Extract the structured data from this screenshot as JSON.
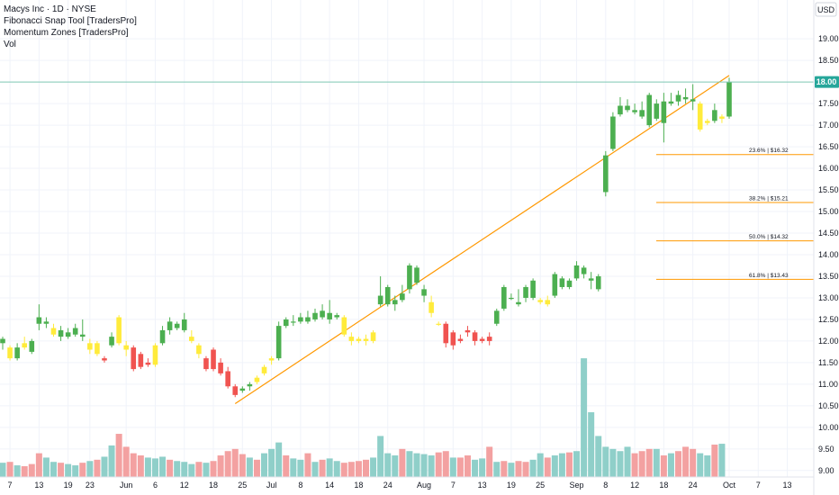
{
  "legend": {
    "symbol": "Macys Inc · 1D · NYSE",
    "indicator_1": "Fibonacci Snap Tool [TradersPro]",
    "indicator_2": "Momentum Zones [TradersPro]",
    "indicator_3": "Vol"
  },
  "price_axis": {
    "currency": "USD",
    "current_price_label": "18.00",
    "current_price": 18.0
  },
  "colors": {
    "up": "#4caf50",
    "down": "#f05350",
    "neutral": "#ffeb3b",
    "vol_up": "#8fcfc9",
    "vol_down": "#f3a1a1",
    "trendline": "#ff9800",
    "fib_line": "#ff9800",
    "price_line": "#7fc8b5",
    "price_tag": "#26a69a"
  },
  "chart_data": {
    "type": "candlestick",
    "y_axis": {
      "scale": "linear",
      "ylim": [
        8.85,
        19.9
      ],
      "ticks": [
        "9.00",
        "9.50",
        "10.00",
        "10.50",
        "11.00",
        "11.50",
        "12.00",
        "12.50",
        "13.00",
        "13.50",
        "14.00",
        "14.50",
        "15.00",
        "15.50",
        "16.00",
        "16.50",
        "17.00",
        "17.50",
        "18.00",
        "18.50",
        "19.00"
      ]
    },
    "x_axis": {
      "ticks": [
        {
          "label": "7",
          "i": 1
        },
        {
          "label": "13",
          "i": 5
        },
        {
          "label": "19",
          "i": 9
        },
        {
          "label": "23",
          "i": 12
        },
        {
          "label": "Jun",
          "i": 17
        },
        {
          "label": "6",
          "i": 21
        },
        {
          "label": "12",
          "i": 25
        },
        {
          "label": "18",
          "i": 29
        },
        {
          "label": "25",
          "i": 33
        },
        {
          "label": "Jul",
          "i": 37
        },
        {
          "label": "8",
          "i": 41
        },
        {
          "label": "14",
          "i": 45
        },
        {
          "label": "18",
          "i": 49
        },
        {
          "label": "24",
          "i": 53
        },
        {
          "label": "Aug",
          "i": 58
        },
        {
          "label": "7",
          "i": 62
        },
        {
          "label": "13",
          "i": 66
        },
        {
          "label": "19",
          "i": 70
        },
        {
          "label": "25",
          "i": 74
        },
        {
          "label": "Sep",
          "i": 79
        },
        {
          "label": "8",
          "i": 83
        },
        {
          "label": "12",
          "i": 87
        },
        {
          "label": "18",
          "i": 91
        },
        {
          "label": "24",
          "i": 95
        },
        {
          "label": "Oct",
          "i": 100
        },
        {
          "label": "7",
          "i": 104
        },
        {
          "label": "13",
          "i": 108
        }
      ]
    },
    "candles": [
      {
        "o": 11.95,
        "h": 12.1,
        "l": 11.8,
        "c": 12.05,
        "z": "up"
      },
      {
        "o": 11.85,
        "h": 11.9,
        "l": 11.55,
        "c": 11.6,
        "z": "neutral"
      },
      {
        "o": 11.6,
        "h": 11.95,
        "l": 11.55,
        "c": 11.85,
        "z": "up"
      },
      {
        "o": 11.85,
        "h": 12.1,
        "l": 11.8,
        "c": 11.95,
        "z": "neutral"
      },
      {
        "o": 11.75,
        "h": 12.05,
        "l": 11.7,
        "c": 12.0,
        "z": "up"
      },
      {
        "o": 12.4,
        "h": 12.85,
        "l": 12.25,
        "c": 12.55,
        "z": "up"
      },
      {
        "o": 12.4,
        "h": 12.55,
        "l": 12.3,
        "c": 12.45,
        "z": "up"
      },
      {
        "o": 12.3,
        "h": 12.4,
        "l": 12.1,
        "c": 12.15,
        "z": "neutral"
      },
      {
        "o": 12.1,
        "h": 12.35,
        "l": 12.0,
        "c": 12.25,
        "z": "up"
      },
      {
        "o": 12.1,
        "h": 12.3,
        "l": 12.05,
        "c": 12.2,
        "z": "up"
      },
      {
        "o": 12.15,
        "h": 12.4,
        "l": 12.1,
        "c": 12.3,
        "z": "up"
      },
      {
        "o": 12.15,
        "h": 12.5,
        "l": 12.0,
        "c": 12.1,
        "z": "up"
      },
      {
        "o": 11.95,
        "h": 12.05,
        "l": 11.7,
        "c": 11.8,
        "z": "neutral"
      },
      {
        "o": 11.95,
        "h": 12.0,
        "l": 11.65,
        "c": 11.7,
        "z": "neutral"
      },
      {
        "o": 11.6,
        "h": 11.65,
        "l": 11.5,
        "c": 11.55,
        "z": "down"
      },
      {
        "o": 11.9,
        "h": 12.2,
        "l": 11.85,
        "c": 12.1,
        "z": "up"
      },
      {
        "o": 12.55,
        "h": 12.6,
        "l": 11.9,
        "c": 11.95,
        "z": "neutral"
      },
      {
        "o": 11.9,
        "h": 12.0,
        "l": 11.65,
        "c": 11.8,
        "z": "neutral"
      },
      {
        "o": 11.85,
        "h": 11.9,
        "l": 11.3,
        "c": 11.35,
        "z": "down"
      },
      {
        "o": 11.7,
        "h": 11.75,
        "l": 11.35,
        "c": 11.4,
        "z": "down"
      },
      {
        "o": 11.5,
        "h": 11.6,
        "l": 11.4,
        "c": 11.45,
        "z": "down"
      },
      {
        "o": 11.45,
        "h": 11.95,
        "l": 11.4,
        "c": 11.9,
        "z": "neutral"
      },
      {
        "o": 11.95,
        "h": 12.35,
        "l": 11.9,
        "c": 12.25,
        "z": "up"
      },
      {
        "o": 12.25,
        "h": 12.55,
        "l": 12.15,
        "c": 12.45,
        "z": "up"
      },
      {
        "o": 12.3,
        "h": 12.45,
        "l": 12.25,
        "c": 12.4,
        "z": "up"
      },
      {
        "o": 12.5,
        "h": 12.65,
        "l": 12.2,
        "c": 12.25,
        "z": "up"
      },
      {
        "o": 12.1,
        "h": 12.25,
        "l": 11.95,
        "c": 12.0,
        "z": "neutral"
      },
      {
        "o": 11.9,
        "h": 11.95,
        "l": 11.6,
        "c": 11.7,
        "z": "neutral"
      },
      {
        "o": 11.6,
        "h": 11.65,
        "l": 11.3,
        "c": 11.35,
        "z": "down"
      },
      {
        "o": 11.8,
        "h": 11.85,
        "l": 11.3,
        "c": 11.35,
        "z": "down"
      },
      {
        "o": 11.5,
        "h": 11.6,
        "l": 11.2,
        "c": 11.25,
        "z": "down"
      },
      {
        "o": 11.3,
        "h": 11.4,
        "l": 10.9,
        "c": 10.95,
        "z": "down"
      },
      {
        "o": 10.95,
        "h": 11.0,
        "l": 10.7,
        "c": 10.75,
        "z": "down"
      },
      {
        "o": 10.85,
        "h": 10.95,
        "l": 10.8,
        "c": 10.9,
        "z": "up"
      },
      {
        "o": 10.95,
        "h": 11.05,
        "l": 10.85,
        "c": 11.0,
        "z": "up"
      },
      {
        "o": 11.05,
        "h": 11.2,
        "l": 11.0,
        "c": 11.15,
        "z": "neutral"
      },
      {
        "o": 11.25,
        "h": 11.45,
        "l": 11.2,
        "c": 11.4,
        "z": "neutral"
      },
      {
        "o": 11.55,
        "h": 11.65,
        "l": 11.45,
        "c": 11.6,
        "z": "neutral"
      },
      {
        "o": 11.6,
        "h": 12.45,
        "l": 11.55,
        "c": 12.35,
        "z": "up"
      },
      {
        "o": 12.35,
        "h": 12.55,
        "l": 12.3,
        "c": 12.5,
        "z": "up"
      },
      {
        "o": 12.45,
        "h": 12.6,
        "l": 12.35,
        "c": 12.45,
        "z": "up"
      },
      {
        "o": 12.45,
        "h": 12.65,
        "l": 12.4,
        "c": 12.55,
        "z": "up"
      },
      {
        "o": 12.45,
        "h": 12.7,
        "l": 12.4,
        "c": 12.55,
        "z": "up"
      },
      {
        "o": 12.5,
        "h": 12.75,
        "l": 12.45,
        "c": 12.65,
        "z": "up"
      },
      {
        "o": 12.55,
        "h": 12.85,
        "l": 12.5,
        "c": 12.7,
        "z": "up"
      },
      {
        "o": 12.65,
        "h": 12.95,
        "l": 12.4,
        "c": 12.5,
        "z": "up"
      },
      {
        "o": 12.55,
        "h": 12.65,
        "l": 12.5,
        "c": 12.6,
        "z": "up"
      },
      {
        "o": 12.55,
        "h": 12.6,
        "l": 12.1,
        "c": 12.15,
        "z": "neutral"
      },
      {
        "o": 12.1,
        "h": 12.2,
        "l": 11.9,
        "c": 12.0,
        "z": "neutral"
      },
      {
        "o": 12.05,
        "h": 12.1,
        "l": 11.95,
        "c": 12.0,
        "z": "neutral"
      },
      {
        "o": 12.0,
        "h": 12.15,
        "l": 11.9,
        "c": 12.05,
        "z": "neutral"
      },
      {
        "o": 12.0,
        "h": 12.25,
        "l": 11.95,
        "c": 12.2,
        "z": "neutral"
      },
      {
        "o": 12.85,
        "h": 13.5,
        "l": 12.8,
        "c": 13.05,
        "z": "up"
      },
      {
        "o": 12.85,
        "h": 13.3,
        "l": 12.8,
        "c": 13.25,
        "z": "up"
      },
      {
        "o": 12.95,
        "h": 13.05,
        "l": 12.7,
        "c": 12.85,
        "z": "up"
      },
      {
        "o": 13.1,
        "h": 13.3,
        "l": 12.9,
        "c": 12.95,
        "z": "up"
      },
      {
        "o": 13.2,
        "h": 13.8,
        "l": 13.1,
        "c": 13.75,
        "z": "up"
      },
      {
        "o": 13.35,
        "h": 13.75,
        "l": 13.3,
        "c": 13.7,
        "z": "up"
      },
      {
        "o": 13.05,
        "h": 13.3,
        "l": 12.9,
        "c": 13.2,
        "z": "up"
      },
      {
        "o": 12.9,
        "h": 13.05,
        "l": 12.55,
        "c": 12.65,
        "z": "neutral"
      },
      {
        "o": 12.4,
        "h": 12.45,
        "l": 12.35,
        "c": 12.4,
        "z": "neutral"
      },
      {
        "o": 12.4,
        "h": 12.45,
        "l": 11.85,
        "c": 11.95,
        "z": "down"
      },
      {
        "o": 12.2,
        "h": 12.25,
        "l": 11.8,
        "c": 11.9,
        "z": "down"
      },
      {
        "o": 12.05,
        "h": 12.15,
        "l": 11.95,
        "c": 12.0,
        "z": "down"
      },
      {
        "o": 12.25,
        "h": 12.35,
        "l": 12.1,
        "c": 12.2,
        "z": "down"
      },
      {
        "o": 12.2,
        "h": 12.25,
        "l": 11.9,
        "c": 12.0,
        "z": "down"
      },
      {
        "o": 12.05,
        "h": 12.1,
        "l": 11.95,
        "c": 12.0,
        "z": "down"
      },
      {
        "o": 12.1,
        "h": 12.2,
        "l": 11.9,
        "c": 12.0,
        "z": "down"
      },
      {
        "o": 12.4,
        "h": 12.75,
        "l": 12.35,
        "c": 12.7,
        "z": "up"
      },
      {
        "o": 12.75,
        "h": 13.3,
        "l": 12.7,
        "c": 13.25,
        "z": "up"
      },
      {
        "o": 13.0,
        "h": 13.1,
        "l": 12.95,
        "c": 13.0,
        "z": "up"
      },
      {
        "o": 12.85,
        "h": 13.2,
        "l": 12.8,
        "c": 12.9,
        "z": "up"
      },
      {
        "o": 13.0,
        "h": 13.3,
        "l": 12.9,
        "c": 13.25,
        "z": "up"
      },
      {
        "o": 13.0,
        "h": 13.45,
        "l": 12.95,
        "c": 13.4,
        "z": "up"
      },
      {
        "o": 12.95,
        "h": 13.0,
        "l": 12.85,
        "c": 12.9,
        "z": "neutral"
      },
      {
        "o": 12.95,
        "h": 13.05,
        "l": 12.8,
        "c": 12.85,
        "z": "neutral"
      },
      {
        "o": 13.05,
        "h": 13.6,
        "l": 13.0,
        "c": 13.55,
        "z": "up"
      },
      {
        "o": 13.25,
        "h": 13.5,
        "l": 13.2,
        "c": 13.45,
        "z": "up"
      },
      {
        "o": 13.25,
        "h": 13.45,
        "l": 13.2,
        "c": 13.4,
        "z": "up"
      },
      {
        "o": 13.45,
        "h": 13.85,
        "l": 13.4,
        "c": 13.75,
        "z": "up"
      },
      {
        "o": 13.7,
        "h": 13.75,
        "l": 13.45,
        "c": 13.55,
        "z": "up"
      },
      {
        "o": 13.45,
        "h": 13.6,
        "l": 13.2,
        "c": 13.4,
        "z": "up"
      },
      {
        "o": 13.2,
        "h": 13.55,
        "l": 13.15,
        "c": 13.5,
        "z": "up"
      },
      {
        "o": 15.45,
        "h": 16.4,
        "l": 15.35,
        "c": 16.3,
        "z": "up"
      },
      {
        "o": 16.45,
        "h": 17.3,
        "l": 16.4,
        "c": 17.2,
        "z": "up"
      },
      {
        "o": 17.25,
        "h": 17.65,
        "l": 17.2,
        "c": 17.45,
        "z": "up"
      },
      {
        "o": 17.35,
        "h": 17.6,
        "l": 17.3,
        "c": 17.45,
        "z": "up"
      },
      {
        "o": 17.35,
        "h": 17.5,
        "l": 17.25,
        "c": 17.3,
        "z": "up"
      },
      {
        "o": 17.2,
        "h": 17.55,
        "l": 17.15,
        "c": 17.35,
        "z": "up"
      },
      {
        "o": 17.0,
        "h": 17.75,
        "l": 16.95,
        "c": 17.7,
        "z": "up"
      },
      {
        "o": 17.15,
        "h": 17.6,
        "l": 17.1,
        "c": 17.5,
        "z": "up"
      },
      {
        "o": 17.05,
        "h": 17.75,
        "l": 16.6,
        "c": 17.55,
        "z": "up"
      },
      {
        "o": 17.5,
        "h": 17.75,
        "l": 17.45,
        "c": 17.55,
        "z": "up"
      },
      {
        "o": 17.55,
        "h": 17.8,
        "l": 17.45,
        "c": 17.7,
        "z": "up"
      },
      {
        "o": 17.6,
        "h": 17.85,
        "l": 17.5,
        "c": 17.65,
        "z": "up"
      },
      {
        "o": 17.6,
        "h": 17.95,
        "l": 17.35,
        "c": 17.55,
        "z": "up"
      },
      {
        "o": 17.5,
        "h": 17.55,
        "l": 16.85,
        "c": 16.9,
        "z": "neutral"
      },
      {
        "o": 17.1,
        "h": 17.15,
        "l": 17.0,
        "c": 17.05,
        "z": "neutral"
      },
      {
        "o": 17.1,
        "h": 17.5,
        "l": 17.05,
        "c": 17.35,
        "z": "up"
      },
      {
        "o": 17.2,
        "h": 17.25,
        "l": 17.05,
        "c": 17.15,
        "z": "neutral"
      },
      {
        "o": 17.2,
        "h": 18.1,
        "l": 17.15,
        "c": 18.0,
        "z": "up"
      }
    ],
    "volume": [
      9.18,
      9.2,
      9.12,
      9.1,
      9.15,
      9.4,
      9.3,
      9.2,
      9.18,
      9.15,
      9.12,
      9.18,
      9.22,
      9.25,
      9.32,
      9.58,
      9.85,
      9.55,
      9.4,
      9.35,
      9.3,
      9.28,
      9.32,
      9.25,
      9.22,
      9.2,
      9.15,
      9.2,
      9.18,
      9.22,
      9.35,
      9.45,
      9.5,
      9.38,
      9.3,
      9.25,
      9.4,
      9.5,
      9.65,
      9.35,
      9.28,
      9.25,
      9.4,
      9.2,
      9.25,
      9.28,
      9.22,
      9.18,
      9.2,
      9.22,
      9.25,
      9.3,
      9.8,
      9.4,
      9.35,
      9.5,
      9.45,
      9.4,
      9.38,
      9.35,
      9.42,
      9.45,
      9.3,
      9.3,
      9.35,
      9.25,
      9.28,
      9.55,
      9.2,
      9.22,
      9.18,
      9.22,
      9.2,
      9.25,
      9.4,
      9.3,
      9.35,
      9.4,
      9.42,
      9.45,
      11.6,
      10.35,
      9.8,
      9.55,
      9.5,
      9.45,
      9.55,
      9.4,
      9.45,
      9.5,
      9.5,
      9.35,
      9.4,
      9.45,
      9.55,
      9.5,
      9.4,
      9.35,
      9.6,
      9.62
    ],
    "volume_color": [
      "up",
      "down",
      "up",
      "down",
      "down",
      "down",
      "up",
      "up",
      "down",
      "up",
      "up",
      "down",
      "up",
      "down",
      "up",
      "up",
      "down",
      "down",
      "down",
      "down",
      "up",
      "up",
      "up",
      "down",
      "up",
      "up",
      "up",
      "down",
      "up",
      "down",
      "down",
      "down",
      "down",
      "down",
      "up",
      "down",
      "up",
      "up",
      "up",
      "down",
      "up",
      "up",
      "down",
      "up",
      "down",
      "up",
      "up",
      "down",
      "down",
      "down",
      "down",
      "up",
      "up",
      "up",
      "up",
      "down",
      "up",
      "up",
      "up",
      "up",
      "down",
      "down",
      "up",
      "down",
      "down",
      "up",
      "up",
      "down",
      "up",
      "down",
      "up",
      "down",
      "down",
      "up",
      "up",
      "down",
      "up",
      "up",
      "down",
      "up",
      "up",
      "up",
      "up",
      "up",
      "up",
      "up",
      "up",
      "down",
      "down",
      "down",
      "up",
      "down",
      "up",
      "down",
      "down",
      "down",
      "up",
      "up",
      "down",
      "up"
    ],
    "trendline": {
      "from": {
        "i": 32,
        "price": 10.55
      },
      "to": {
        "i": 100,
        "price": 18.15
      }
    },
    "fib_levels": [
      {
        "label": "23.6% | $16.32",
        "price": 16.32
      },
      {
        "label": "38.2% | $15.21",
        "price": 15.21
      },
      {
        "label": "50.0% | $14.32",
        "price": 14.32
      },
      {
        "label": "61.8% | $13.43",
        "price": 13.43
      }
    ]
  }
}
